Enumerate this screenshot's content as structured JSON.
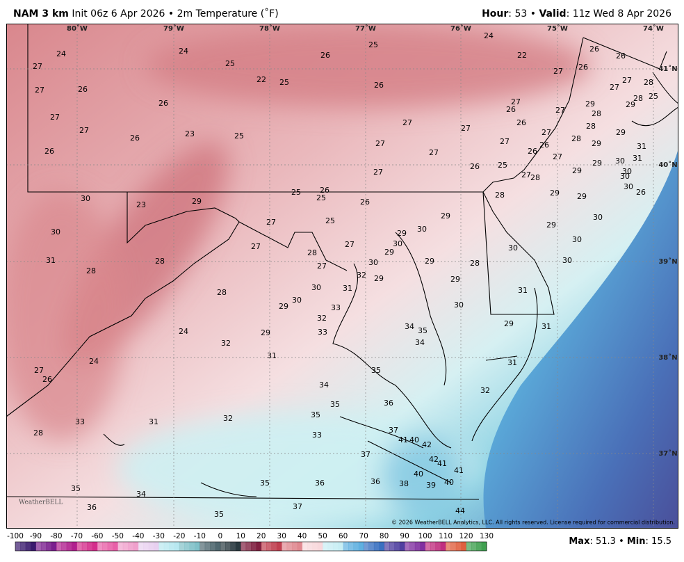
{
  "header": {
    "model": "NAM 3 km",
    "init": "Init 06z 6 Apr 2026 • 2m Temperature (˚F)",
    "hour_label": "Hour",
    "hour_value": ": 53 • ",
    "valid_label": "Valid",
    "valid_value": ": 11z Wed 8 Apr 2026"
  },
  "map": {
    "longitude_labels": [
      "80˚W",
      "79˚W",
      "78˚W",
      "77˚W",
      "76˚W",
      "75˚W",
      "74˚W"
    ],
    "latitude_labels": [
      "41˚N",
      "40˚N",
      "39˚N",
      "38˚N",
      "37˚N"
    ],
    "temperatures": [
      24,
      27,
      24,
      25,
      26,
      25,
      24,
      22,
      26,
      26,
      27,
      26,
      22,
      25,
      26,
      27,
      26,
      27,
      28,
      27,
      26,
      27,
      27,
      26,
      29,
      27,
      28,
      29,
      28,
      25,
      26,
      27,
      27,
      27,
      26,
      23,
      25,
      28,
      29,
      27,
      27,
      28,
      29,
      26,
      27,
      27,
      26,
      26,
      31,
      27,
      26,
      25,
      27,
      29,
      29,
      30,
      31,
      30,
      30,
      27,
      28,
      30,
      26,
      25,
      26,
      25,
      30,
      23,
      29,
      26,
      28,
      29,
      29,
      27,
      25,
      30,
      29,
      30,
      29,
      30,
      29,
      27,
      27,
      28,
      29,
      30,
      30,
      30,
      30,
      31,
      28,
      27,
      30,
      29,
      28,
      28,
      32,
      29,
      29,
      30,
      31,
      31,
      28,
      30,
      33,
      30,
      29,
      32,
      34,
      35,
      29,
      33,
      29,
      24,
      34,
      32,
      31,
      24,
      27,
      26,
      31,
      31,
      35,
      34,
      32,
      35,
      36,
      35,
      33,
      31,
      32,
      28,
      33,
      37,
      41,
      40,
      42,
      37,
      42,
      41,
      41,
      40,
      35,
      34,
      35,
      36,
      36,
      38,
      39,
      40,
      36,
      35,
      37,
      44
    ],
    "logo": "WeatherBELL",
    "copyright": "© 2026 WeatherBELL Analytics, LLC. All rights reserved. License required for commercial distribution."
  },
  "colorbar": {
    "labels": [
      -100,
      -90,
      -80,
      -70,
      -60,
      -50,
      -40,
      -30,
      -20,
      -10,
      0,
      10,
      20,
      30,
      40,
      50,
      60,
      70,
      80,
      90,
      100,
      110,
      120,
      130
    ]
  },
  "footer": {
    "max_label": "Max",
    "max_value": ": 51.3 • ",
    "min_label": "Min",
    "min_value": ": 15.5"
  }
}
